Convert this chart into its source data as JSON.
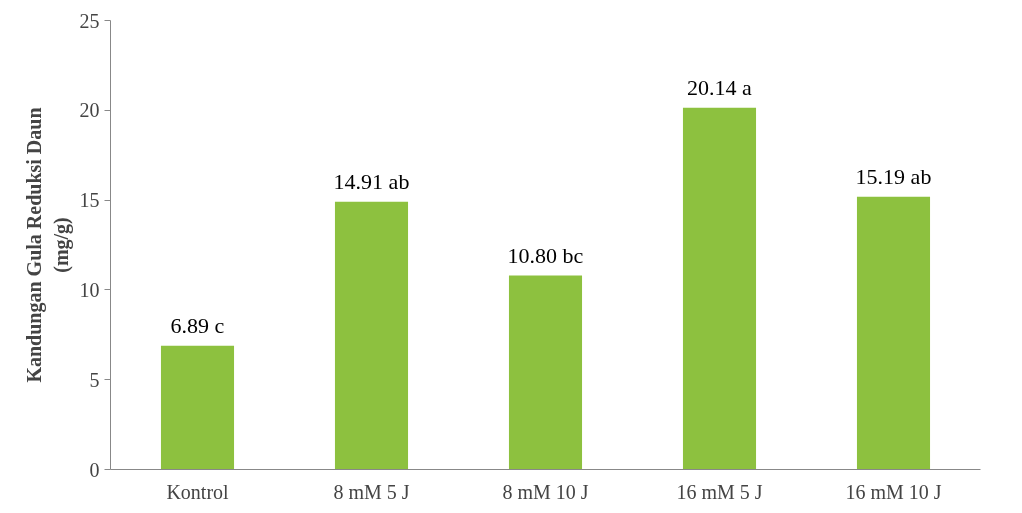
{
  "chart_data": {
    "type": "bar",
    "ylabel": "Kandungan Gula Reduksi Daun\n(mg/g)",
    "categories": [
      "Kontrol",
      "8 mM 5 J",
      "8 mM 10 J",
      "16 mM 5 J",
      "16 mM 10 J"
    ],
    "values": [
      6.89,
      14.91,
      10.8,
      20.14,
      15.19
    ],
    "value_labels": [
      "6.89 c",
      "14.91 ab",
      "10.80 bc",
      "20.14 a",
      "15.19 ab"
    ],
    "color": "#8dc13f",
    "ylim": [
      0,
      25
    ],
    "yticks": [
      0,
      5,
      10,
      15,
      20,
      25
    ],
    "grid": false
  }
}
